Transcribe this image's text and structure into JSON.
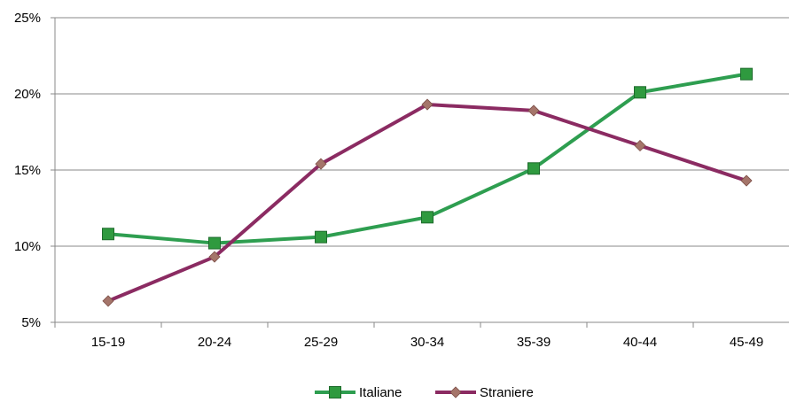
{
  "chart_data": {
    "type": "line",
    "title": "",
    "xlabel": "",
    "ylabel": "",
    "categories": [
      "15-19",
      "20-24",
      "25-29",
      "30-34",
      "35-39",
      "40-44",
      "45-49"
    ],
    "y_ticks": [
      "5%",
      "10%",
      "15%",
      "20%",
      "25%"
    ],
    "ylim": [
      5,
      25
    ],
    "grid": "horizontal",
    "legend_position": "bottom",
    "series": [
      {
        "name": "Italiane",
        "values": [
          10.8,
          10.2,
          10.6,
          11.9,
          15.1,
          20.1,
          21.3
        ],
        "color": "#2e9e50",
        "marker": "square",
        "marker_color": "#2f9a3f"
      },
      {
        "name": "Straniere",
        "values": [
          6.4,
          9.3,
          15.4,
          19.3,
          18.9,
          16.6,
          14.3
        ],
        "color": "#8b2b62",
        "marker": "diamond",
        "marker_color": "#a5756a"
      }
    ]
  }
}
